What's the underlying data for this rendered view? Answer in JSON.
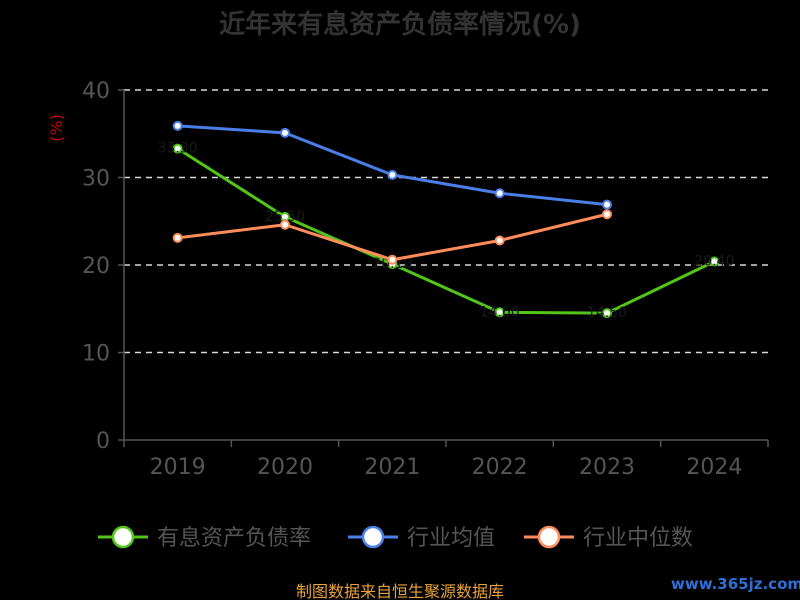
{
  "chart_data": {
    "type": "line",
    "title": "近年来有息资产负债率情况(%)",
    "ylabel": "(%)",
    "ylim": [
      0,
      40
    ],
    "yticks": [
      0,
      10,
      20,
      30,
      40
    ],
    "categories": [
      "2019",
      "2020",
      "2021",
      "2022",
      "2023",
      "2024"
    ],
    "grid": true,
    "legend_position": "bottom",
    "series": [
      {
        "name": "有息资产负债率",
        "color": "#52c41a",
        "values": [
          33.3,
          25.5,
          20.1,
          14.6,
          14.5,
          20.4
        ]
      },
      {
        "name": "行业均值",
        "color": "#4a7fe8",
        "values": [
          35.9,
          35.1,
          30.3,
          28.2,
          26.9,
          null
        ]
      },
      {
        "name": "行业中位数",
        "color": "#ff8c5a",
        "values": [
          23.1,
          24.6,
          20.6,
          22.8,
          25.8,
          null
        ]
      }
    ]
  },
  "source": "制图数据来自恒生聚源数据库",
  "watermark": "www.365jz.com"
}
